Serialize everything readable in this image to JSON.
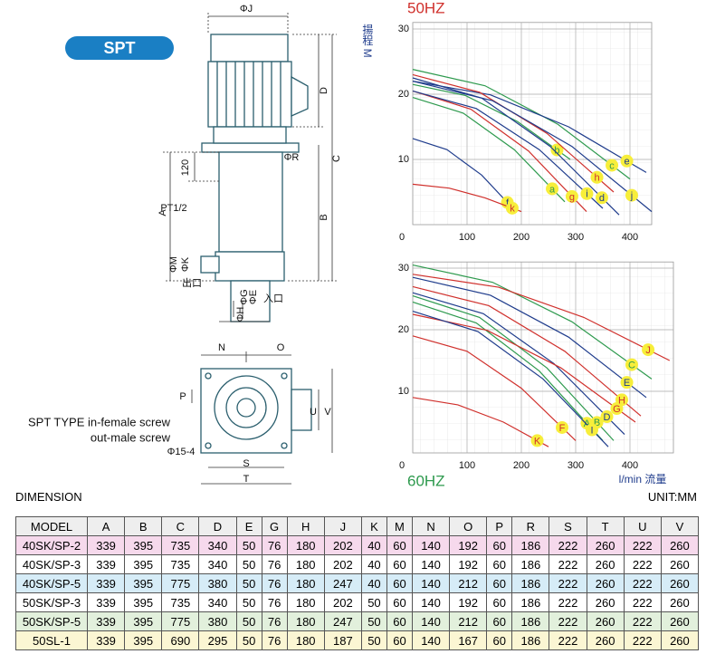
{
  "badge": "SPT",
  "diagram": {
    "labels": {
      "j": "ΦJ",
      "d": "D",
      "c": "C",
      "r": "ΦR",
      "h120": "120",
      "a": "A",
      "b": "B",
      "pt": "PT1/2",
      "m": "ΦM",
      "k": "ΦK",
      "outlet": "出口",
      "e": "ΦE",
      "g": "ΦG",
      "inlet": "入口",
      "h": "ΦH",
      "n": "N",
      "o": "O",
      "p": "P",
      "u": "U",
      "v": "V",
      "hole": "Φ15-4",
      "s": "S",
      "t": "T"
    },
    "note": [
      "SPT TYPE in-female screw",
      "out-male screw"
    ]
  },
  "chart_data": [
    {
      "type": "line",
      "title": "50HZ",
      "title_color": "#d0302c",
      "y_label": "揚程 M",
      "xlim": [
        0,
        440
      ],
      "ylim": [
        0,
        31
      ],
      "xticks": [
        0,
        100,
        200,
        300,
        400
      ],
      "yticks": [
        10,
        20,
        30
      ],
      "grid": true,
      "series": [
        {
          "name": "a",
          "color": "#2e9a4e",
          "x": [
            0,
            93,
            187,
            280
          ],
          "values": [
            19.5,
            17.1,
            11.5,
            3.5
          ]
        },
        {
          "name": "b",
          "color": "#2e9a4e",
          "x": [
            0,
            97,
            193,
            290
          ],
          "values": [
            21.5,
            19.8,
            15.8,
            10
          ]
        },
        {
          "name": "c",
          "color": "#2e9a4e",
          "x": [
            0,
            133,
            267,
            400
          ],
          "values": [
            23.8,
            21.3,
            15.4,
            7
          ]
        },
        {
          "name": "d",
          "color": "#1f3c8c",
          "x": [
            0,
            127,
            253,
            380
          ],
          "values": [
            22.5,
            19.4,
            12,
            1.5
          ]
        },
        {
          "name": "e",
          "color": "#1f3c8c",
          "x": [
            0,
            143,
            287,
            430
          ],
          "values": [
            22,
            19.9,
            15,
            8
          ]
        },
        {
          "name": "f",
          "color": "#1f3c8c",
          "x": [
            0,
            63,
            127,
            190
          ],
          "values": [
            13.2,
            11.5,
            7.6,
            2
          ]
        },
        {
          "name": "g",
          "color": "#d0302c",
          "x": [
            0,
            107,
            213,
            320
          ],
          "values": [
            20.5,
            17.7,
            11.3,
            2
          ]
        },
        {
          "name": "h",
          "color": "#d0302c",
          "x": [
            0,
            123,
            247,
            370
          ],
          "values": [
            23,
            20.3,
            14,
            5
          ]
        },
        {
          "name": "i",
          "color": "#1f3c8c",
          "x": [
            0,
            117,
            233,
            350
          ],
          "values": [
            20.5,
            17.8,
            11.5,
            2.5
          ]
        },
        {
          "name": "j",
          "color": "#1f3c8c",
          "x": [
            0,
            147,
            293,
            440
          ],
          "values": [
            22,
            19,
            12,
            2
          ]
        },
        {
          "name": "k",
          "color": "#d0302c",
          "x": [
            0,
            67,
            133,
            200
          ],
          "values": [
            6.2,
            5.6,
            4.1,
            2
          ]
        }
      ]
    },
    {
      "type": "line",
      "title": "60HZ",
      "title_color": "#2e9a4e",
      "x_label": "l/min 流量",
      "xlim": [
        0,
        480
      ],
      "ylim": [
        0,
        31
      ],
      "xticks": [
        0,
        100,
        200,
        300,
        400
      ],
      "yticks": [
        10,
        20,
        30
      ],
      "grid": true,
      "series": [
        {
          "name": "A",
          "color": "#2e9a4e",
          "x": [
            0,
            117,
            233,
            350
          ],
          "values": [
            24.5,
            21.1,
            13.3,
            2
          ]
        },
        {
          "name": "B",
          "color": "#2e9a4e",
          "x": [
            0,
            123,
            247,
            370
          ],
          "values": [
            25.5,
            22,
            13.8,
            2
          ]
        },
        {
          "name": "C",
          "color": "#2e9a4e",
          "x": [
            0,
            147,
            293,
            440
          ],
          "values": [
            30.5,
            27.7,
            21.3,
            12
          ]
        },
        {
          "name": "D",
          "color": "#1f3c8c",
          "x": [
            0,
            130,
            260,
            390
          ],
          "values": [
            26,
            22.6,
            14.5,
            3
          ]
        },
        {
          "name": "E",
          "color": "#1f3c8c",
          "x": [
            0,
            143,
            287,
            430
          ],
          "values": [
            28.5,
            25.6,
            18.8,
            9
          ]
        },
        {
          "name": "F",
          "color": "#d0302c",
          "x": [
            0,
            100,
            200,
            300
          ],
          "values": [
            19,
            16.5,
            10.5,
            2
          ]
        },
        {
          "name": "G",
          "color": "#d0302c",
          "x": [
            0,
            137,
            273,
            410
          ],
          "values": [
            22.5,
            19.9,
            13.8,
            5
          ]
        },
        {
          "name": "H",
          "color": "#d0302c",
          "x": [
            0,
            140,
            280,
            420
          ],
          "values": [
            27,
            23.9,
            16.5,
            6
          ]
        },
        {
          "name": "I",
          "color": "#1f3c8c",
          "x": [
            0,
            120,
            240,
            360
          ],
          "values": [
            23,
            19.7,
            12,
            1
          ]
        },
        {
          "name": "J",
          "color": "#d0302c",
          "x": [
            0,
            158,
            315,
            473
          ],
          "values": [
            29,
            26.9,
            22,
            15
          ]
        },
        {
          "name": "K",
          "color": "#d0302c",
          "x": [
            0,
            83,
            167,
            250
          ],
          "values": [
            9,
            7.8,
            5,
            1
          ]
        }
      ]
    }
  ],
  "dimension": {
    "title": "DIMENSION",
    "unit": "UNIT:MM",
    "columns": [
      "MODEL",
      "A",
      "B",
      "C",
      "D",
      "E",
      "G",
      "H",
      "J",
      "K",
      "M",
      "N",
      "O",
      "P",
      "R",
      "S",
      "T",
      "U",
      "V"
    ],
    "row_colors": [
      "#f6d9ec",
      "#ffffff",
      "#d6ecf7",
      "#ffffff",
      "#e2f0dc",
      "#fbf6d3"
    ],
    "rows": [
      [
        "40SK/SP-2",
        339,
        395,
        735,
        340,
        50,
        76,
        180,
        202,
        40,
        60,
        140,
        192,
        60,
        186,
        222,
        260,
        222,
        260
      ],
      [
        "40SK/SP-3",
        339,
        395,
        735,
        340,
        50,
        76,
        180,
        202,
        40,
        60,
        140,
        192,
        60,
        186,
        222,
        260,
        222,
        260
      ],
      [
        "40SK/SP-5",
        339,
        395,
        775,
        380,
        50,
        76,
        180,
        247,
        40,
        60,
        140,
        212,
        60,
        186,
        222,
        260,
        222,
        260
      ],
      [
        "50SK/SP-3",
        339,
        395,
        735,
        340,
        50,
        76,
        180,
        202,
        50,
        60,
        140,
        192,
        60,
        186,
        222,
        260,
        222,
        260
      ],
      [
        "50SK/SP-5",
        339,
        395,
        775,
        380,
        50,
        76,
        180,
        247,
        50,
        60,
        140,
        212,
        60,
        186,
        222,
        260,
        222,
        260
      ],
      [
        "50SL-1",
        339,
        395,
        690,
        295,
        50,
        76,
        180,
        187,
        50,
        60,
        140,
        167,
        60,
        186,
        222,
        260,
        222,
        260
      ]
    ]
  }
}
